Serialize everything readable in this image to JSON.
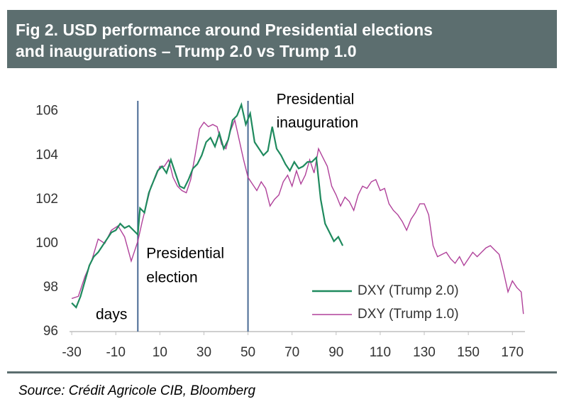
{
  "chart_data": {
    "type": "line",
    "title": [
      "Fig 2. USD performance around Presidential elections",
      "and inaugurations – Trump 2.0 vs Trump 1.0"
    ],
    "source": "Source: Crédit Agricole CIB, Bloomberg",
    "annotations": {
      "election": [
        "Presidential",
        "election"
      ],
      "inauguration": [
        "Presidential",
        "inauguration"
      ],
      "xlabel": "days"
    },
    "vlines": [
      0,
      50
    ],
    "vline_color": "#4a6a94",
    "xlim": [
      -31,
      177
    ],
    "ylim": [
      96,
      106.7
    ],
    "xticks": [
      -30,
      -10,
      10,
      30,
      50,
      70,
      90,
      110,
      130,
      150,
      170
    ],
    "yticks": [
      96,
      98,
      100,
      102,
      104,
      106
    ],
    "grid": false,
    "legend": "lower right",
    "series": [
      {
        "name": "DXY (Trump 2.0)",
        "color": "#1f8a5e",
        "x": [
          -30,
          -28,
          -26,
          -24,
          -22,
          -20,
          -18,
          -16,
          -14,
          -12,
          -10,
          -8,
          -6,
          -4,
          -2,
          0,
          1,
          3,
          5,
          7,
          9,
          11,
          13,
          15,
          17,
          19,
          21,
          23,
          25,
          27,
          29,
          31,
          33,
          35,
          37,
          39,
          41,
          43,
          45,
          47,
          49,
          51,
          53,
          55,
          57,
          59,
          61,
          63,
          65,
          67,
          69,
          71,
          73,
          75,
          77,
          79,
          81,
          83,
          85,
          87,
          89,
          91,
          93
        ],
        "values": [
          97.3,
          97.1,
          97.6,
          98.3,
          99.0,
          99.4,
          99.6,
          99.9,
          100.2,
          100.5,
          100.6,
          100.9,
          100.7,
          100.8,
          100.6,
          100.4,
          101.6,
          101.4,
          102.3,
          102.8,
          103.3,
          103.5,
          103.2,
          103.8,
          103.2,
          102.6,
          102.5,
          102.9,
          103.4,
          103.6,
          104.0,
          104.6,
          104.8,
          104.4,
          105.0,
          104.3,
          104.7,
          105.6,
          105.8,
          106.3,
          105.4,
          105.9,
          104.6,
          104.3,
          104.0,
          104.2,
          105.3,
          104.3,
          104.0,
          103.6,
          103.3,
          103.7,
          103.4,
          103.5,
          103.7,
          103.7,
          103.9,
          102.0,
          100.9,
          100.5,
          100.1,
          100.3,
          99.9
        ]
      },
      {
        "name": "DXY (Trump 1.0)",
        "color": "#b0419a",
        "x": [
          -30,
          -27,
          -24,
          -21,
          -18,
          -15,
          -12,
          -9,
          -6,
          -3,
          0,
          2,
          4,
          6,
          8,
          10,
          12,
          14,
          16,
          18,
          20,
          22,
          24,
          26,
          28,
          30,
          32,
          34,
          36,
          38,
          40,
          42,
          44,
          46,
          48,
          50,
          52,
          54,
          56,
          58,
          60,
          62,
          64,
          66,
          68,
          70,
          72,
          74,
          76,
          78,
          80,
          82,
          84,
          86,
          88,
          90,
          92,
          94,
          96,
          98,
          100,
          102,
          104,
          106,
          108,
          110,
          112,
          114,
          116,
          118,
          120,
          122,
          124,
          126,
          128,
          130,
          132,
          134,
          136,
          138,
          140,
          142,
          144,
          146,
          148,
          150,
          152,
          154,
          156,
          158,
          160,
          162,
          164,
          166,
          168,
          170,
          172,
          174,
          175
        ],
        "values": [
          97.5,
          97.6,
          98.5,
          99.2,
          100.2,
          100.0,
          100.6,
          100.8,
          100.3,
          99.2,
          100.1,
          101.0,
          101.8,
          102.6,
          103.0,
          103.5,
          103.5,
          103.8,
          103.0,
          102.6,
          102.4,
          102.3,
          102.9,
          104.0,
          105.2,
          105.5,
          105.3,
          105.4,
          105.3,
          104.5,
          104.3,
          105.1,
          105.6,
          104.7,
          103.8,
          103.0,
          102.7,
          102.4,
          102.8,
          102.5,
          101.7,
          102.0,
          102.2,
          102.8,
          103.1,
          102.6,
          103.3,
          102.7,
          103.1,
          103.8,
          103.2,
          104.3,
          103.9,
          103.5,
          102.6,
          102.2,
          101.7,
          102.1,
          101.9,
          101.5,
          102.2,
          102.6,
          102.5,
          102.8,
          102.9,
          102.4,
          102.5,
          101.8,
          101.5,
          101.3,
          101.0,
          100.6,
          101.1,
          101.4,
          101.8,
          101.8,
          101.3,
          99.9,
          99.4,
          99.5,
          99.6,
          99.3,
          99.1,
          99.4,
          99.0,
          99.3,
          99.6,
          99.4,
          99.6,
          99.8,
          99.9,
          99.7,
          99.5,
          98.7,
          97.8,
          98.3,
          98.0,
          97.8,
          96.8
        ]
      }
    ]
  }
}
